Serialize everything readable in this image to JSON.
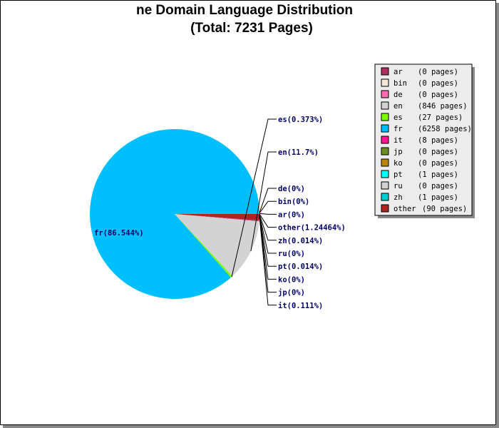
{
  "chart_data": {
    "type": "pie",
    "title": "ne Domain Language Distribution",
    "subtitle": "(Total: 7231 Pages)",
    "slices": [
      {
        "lang": "ar",
        "pages": 0,
        "label": "ar(0%)",
        "legend": "(0 pages)",
        "color": "#b03060"
      },
      {
        "lang": "bin",
        "pages": 0,
        "label": "bin(0%)",
        "legend": "(0 pages)",
        "color": "#f5e6d3"
      },
      {
        "lang": "de",
        "pages": 0,
        "label": "de(0%)",
        "legend": "(0 pages)",
        "color": "#ff69b4"
      },
      {
        "lang": "en",
        "pages": 846,
        "label": "en(11.7%)",
        "legend": "(846 pages)",
        "color": "#d3d3d3"
      },
      {
        "lang": "es",
        "pages": 27,
        "label": "es(0.373%)",
        "legend": "(27 pages)",
        "color": "#7cfc00"
      },
      {
        "lang": "fr",
        "pages": 6258,
        "label": "fr(86.544%)",
        "legend": "(6258 pages)",
        "color": "#00bfff"
      },
      {
        "lang": "it",
        "pages": 8,
        "label": "it(0.111%)",
        "legend": "(8 pages)",
        "color": "#ff1493"
      },
      {
        "lang": "jp",
        "pages": 0,
        "label": "jp(0%)",
        "legend": "(0 pages)",
        "color": "#6b8e23"
      },
      {
        "lang": "ko",
        "pages": 0,
        "label": "ko(0%)",
        "legend": "(0 pages)",
        "color": "#b8860b"
      },
      {
        "lang": "pt",
        "pages": 1,
        "label": "pt(0.014%)",
        "legend": "(1 pages)",
        "color": "#00ffff"
      },
      {
        "lang": "ru",
        "pages": 0,
        "label": "ru(0%)",
        "legend": "(0 pages)",
        "color": "#d3d3d3"
      },
      {
        "lang": "zh",
        "pages": 1,
        "label": "zh(0.014%)",
        "legend": "(1 pages)",
        "color": "#00ced1"
      },
      {
        "lang": "other",
        "pages": 90,
        "label": "other(1.24464%)",
        "legend": "(90 pages)",
        "color": "#b22222"
      }
    ],
    "draw_order": [
      "other",
      "zh",
      "pt",
      "it",
      "en",
      "es",
      "fr"
    ],
    "right_label_order": [
      "de",
      "bin",
      "ar",
      "other",
      "zh",
      "ru",
      "pt",
      "ko",
      "jp",
      "it"
    ],
    "legend_position": "right"
  }
}
